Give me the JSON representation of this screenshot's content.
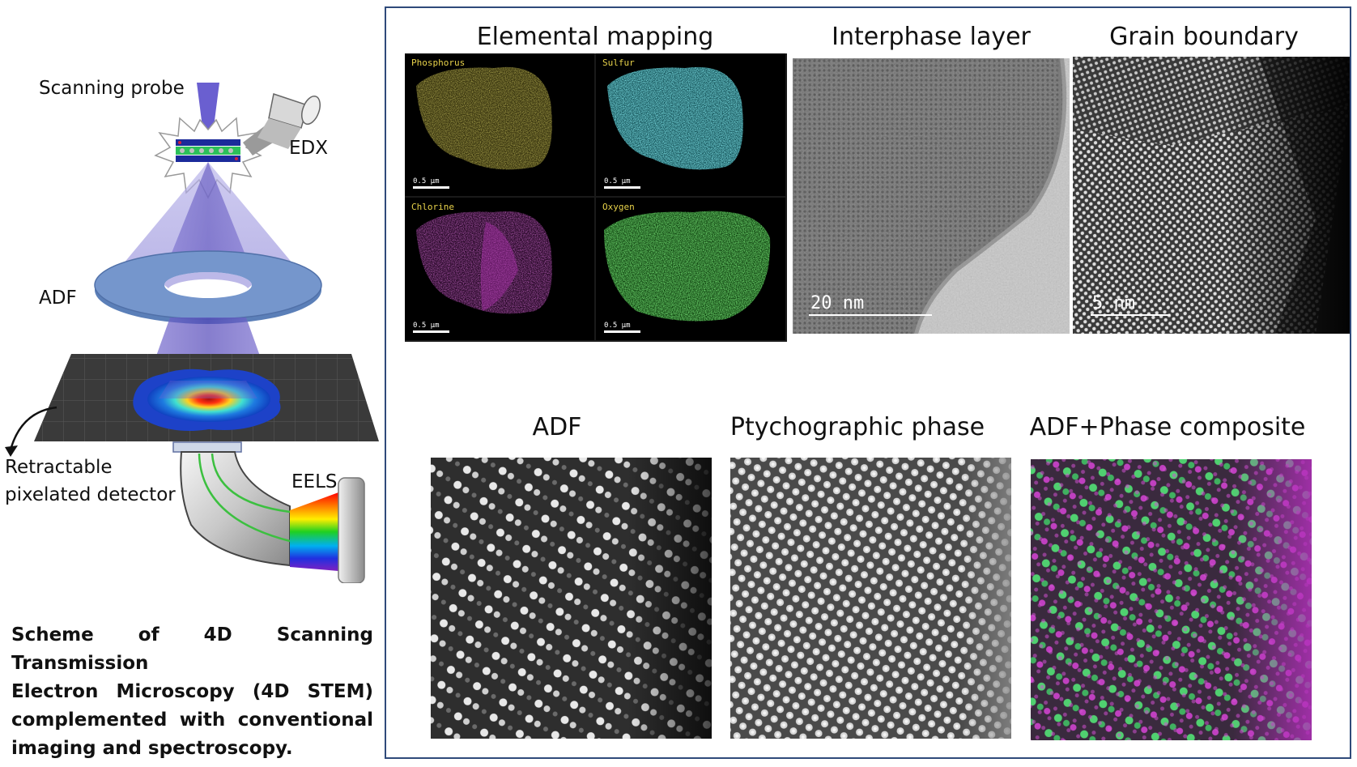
{
  "scheme": {
    "labels": {
      "scanning_probe": "Scanning probe",
      "edx": "EDX",
      "adf": "ADF",
      "retractable_detector_line1": "Retractable",
      "retractable_detector_line2": "pixelated detector",
      "eels": "EELS"
    },
    "caption_lines": [
      "Scheme of 4D Scanning Transmission",
      "Electron Microscopy (4D STEM)",
      "complemented with conventional",
      "imaging and spectroscopy."
    ]
  },
  "panels": {
    "elemental_mapping": {
      "title": "Elemental mapping",
      "maps": [
        {
          "element": "Phosphorus",
          "color": "#c8b828",
          "scale": "0.5 µm"
        },
        {
          "element": "Sulfur",
          "color": "#38c8d0",
          "scale": "0.5 µm"
        },
        {
          "element": "Chlorine",
          "color": "#c030c0",
          "scale": "0.5 µm"
        },
        {
          "element": "Oxygen",
          "color": "#30c030",
          "scale": "0.5 µm"
        }
      ]
    },
    "interphase_layer": {
      "title": "Interphase layer",
      "scale": "20 nm"
    },
    "grain_boundary": {
      "title": "Grain boundary",
      "scale": "5 nm"
    },
    "adf": {
      "title": "ADF"
    },
    "ptychographic_phase": {
      "title": "Ptychographic phase"
    },
    "composite": {
      "title": "ADF+Phase composite"
    }
  },
  "colors": {
    "panel_border": "#2f4a7a",
    "adf_ring": "#5b7fb8",
    "beam": "#6a5acd"
  }
}
